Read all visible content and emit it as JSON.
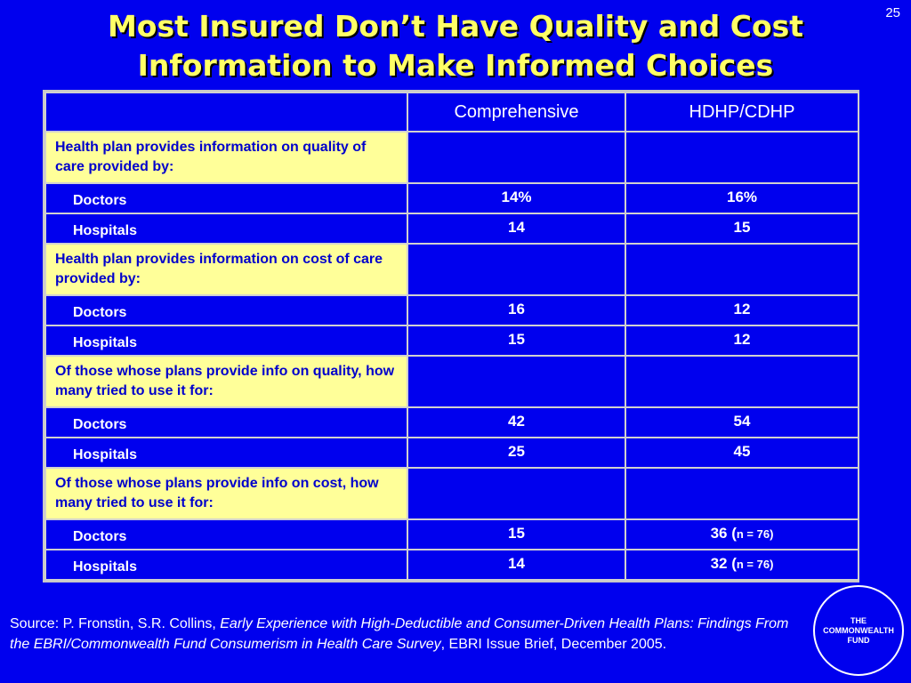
{
  "slide": {
    "number": "25",
    "title_line1": "Most Insured Don’t Have Quality and Cost",
    "title_line2": "Information to Make Informed Choices"
  },
  "table": {
    "columns": [
      "",
      "Comprehensive",
      "HDHP/CDHP"
    ],
    "sections": [
      {
        "heading": "Health plan provides information on quality of care provided by:",
        "rows": [
          {
            "label": "Doctors",
            "comprehensive": "14%",
            "hdhp": "16%",
            "hdhp_note": ""
          },
          {
            "label": "Hospitals",
            "comprehensive": "14",
            "hdhp": "15",
            "hdhp_note": ""
          }
        ]
      },
      {
        "heading": "Health plan provides information on cost of care provided by:",
        "rows": [
          {
            "label": "Doctors",
            "comprehensive": "16",
            "hdhp": "12",
            "hdhp_note": ""
          },
          {
            "label": "Hospitals",
            "comprehensive": "15",
            "hdhp": "12",
            "hdhp_note": ""
          }
        ]
      },
      {
        "heading": "Of those whose plans provide info on quality, how many tried to use it for:",
        "rows": [
          {
            "label": "Doctors",
            "comprehensive": "42",
            "hdhp": "54",
            "hdhp_note": ""
          },
          {
            "label": "Hospitals",
            "comprehensive": "25",
            "hdhp": "45",
            "hdhp_note": ""
          }
        ]
      },
      {
        "heading": "Of those whose plans provide info on cost, how many tried to use it for:",
        "rows": [
          {
            "label": "Doctors",
            "comprehensive": "15",
            "hdhp": "36 (",
            "hdhp_note": "n = 76)"
          },
          {
            "label": "Hospitals",
            "comprehensive": "14",
            "hdhp": "32 (",
            "hdhp_note": "n = 76)"
          }
        ]
      }
    ]
  },
  "source": {
    "prefix": "Source: P. Fronstin, S.R. Collins, ",
    "title": "Early Experience with High-Deductible and Consumer-Driven Health Plans: Findings From the EBRI/Commonwealth Fund Consumerism in Health Care Survey",
    "suffix": ", EBRI Issue Brief, December 2005."
  },
  "logo": {
    "line1": "THE",
    "line2": "COMMONWEALTH",
    "line3": "FUND"
  },
  "colors": {
    "background": "#0000ee",
    "title": "#ffff66",
    "section_fill": "#ffff99",
    "section_text": "#0000cc"
  }
}
